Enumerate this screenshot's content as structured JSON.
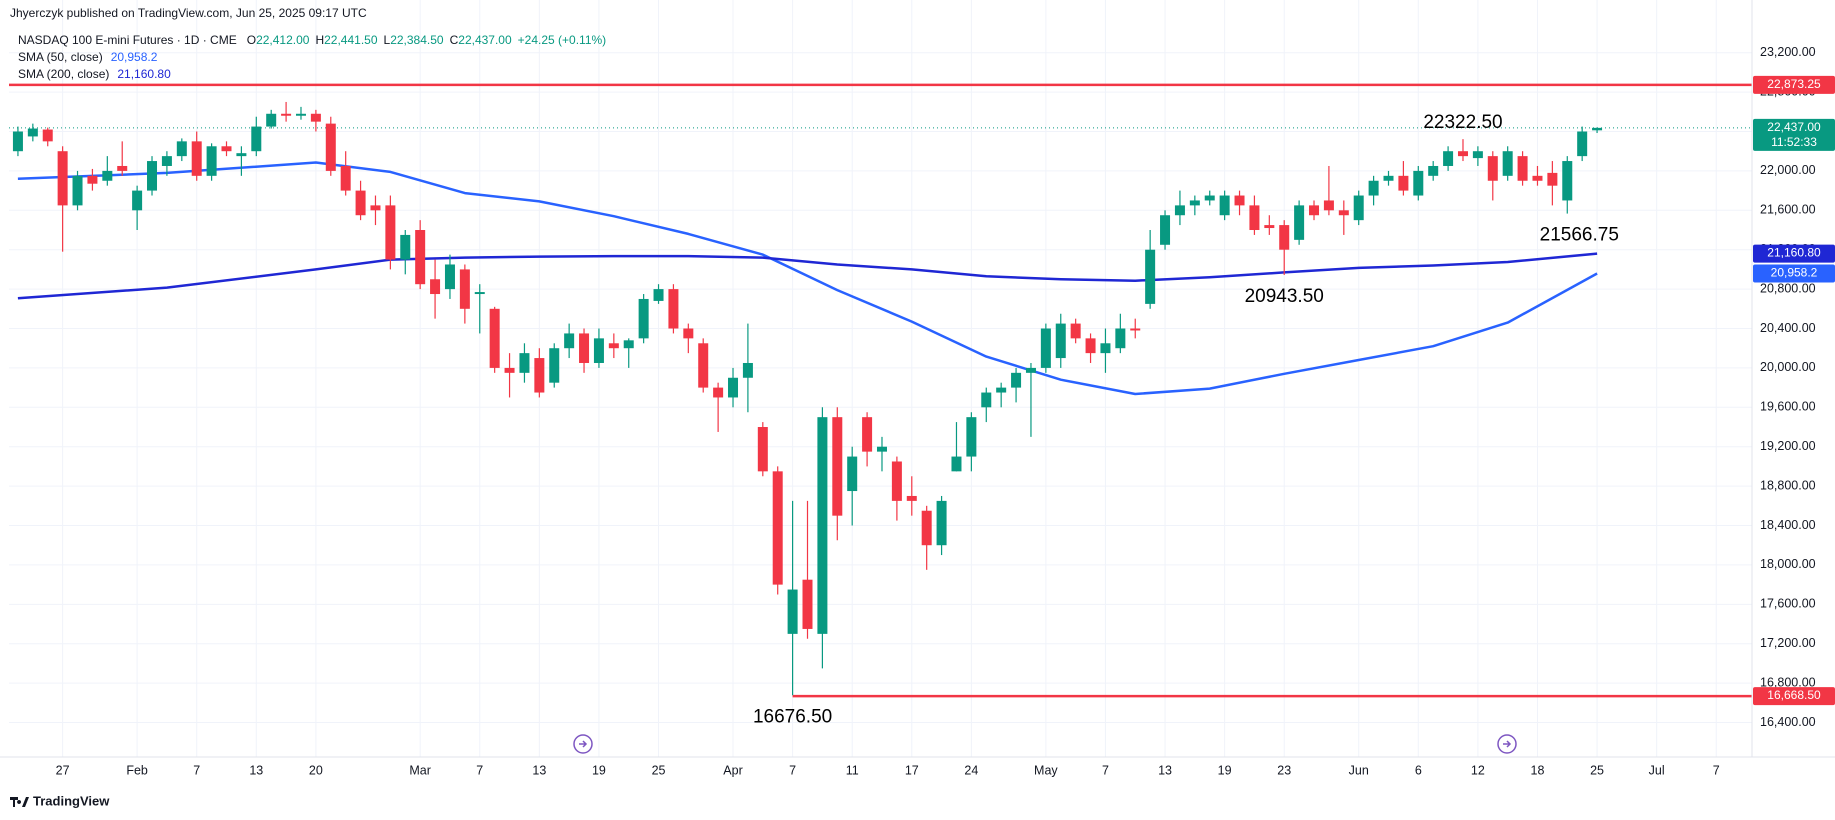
{
  "header": {
    "publisher": "Jhyerczyk published on TradingView.com, Jun 25, 2025 09:17 UTC"
  },
  "footer": {
    "brand": "TradingView"
  },
  "chart_data": {
    "type": "candlestick",
    "legend": {
      "symbol": "NASDAQ 100 E-mini Futures · 1D · CME",
      "ohlc": [
        {
          "key": "O",
          "value": "22,412.00"
        },
        {
          "key": "H",
          "value": "22,441.50"
        },
        {
          "key": "L",
          "value": "22,384.50"
        },
        {
          "key": "C",
          "value": "22,437.00"
        }
      ],
      "change": "+24.25 (+0.11%)"
    },
    "up_color": "#089981",
    "down_color": "#f23645",
    "x": [
      0,
      1,
      2,
      3,
      4,
      5,
      6,
      7,
      8,
      9,
      10,
      11,
      12,
      13,
      14,
      15,
      16,
      17,
      18,
      19,
      20,
      21,
      22,
      23,
      24,
      25,
      26,
      27,
      28,
      29,
      30,
      31,
      32,
      33,
      34,
      35,
      36,
      37,
      38,
      39,
      40,
      41,
      42,
      43,
      44,
      45,
      46,
      47,
      48,
      49,
      50,
      51,
      52,
      53,
      54,
      55,
      56,
      57,
      58,
      59,
      60,
      61,
      62,
      63,
      64,
      65,
      66,
      67,
      68,
      69,
      70,
      71,
      72,
      73,
      74,
      75,
      76,
      77,
      78,
      79,
      80,
      81,
      82,
      83,
      84,
      85,
      86,
      87,
      88,
      89,
      90,
      91,
      92,
      93,
      94,
      95,
      96,
      97,
      98,
      99,
      100,
      101,
      102,
      103,
      104,
      105,
      106
    ],
    "open": [
      22200,
      22350,
      22420,
      22200,
      21650,
      21950,
      21900,
      22050,
      21600,
      21800,
      22050,
      22150,
      22300,
      21950,
      22250,
      22150,
      22200,
      22450,
      22580,
      22560,
      22580,
      22480,
      22050,
      21800,
      21650,
      21650,
      21100,
      21400,
      20900,
      20800,
      21000,
      20750,
      20600,
      20000,
      19950,
      20100,
      19850,
      20200,
      20350,
      20050,
      20250,
      20200,
      20300,
      20680,
      20800,
      20400,
      20250,
      19800,
      19700,
      19900,
      19400,
      18950,
      17300,
      17850,
      17300,
      19500,
      18750,
      19500,
      19150,
      19050,
      18700,
      18550,
      18200,
      18950,
      19100,
      19600,
      19750,
      19800,
      19950,
      20000,
      20100,
      20450,
      20300,
      20150,
      20200,
      20400,
      20650,
      21250,
      21550,
      21650,
      21700,
      21550,
      21750,
      21650,
      21450,
      21450,
      21300,
      21650,
      21700,
      21600,
      21500,
      21750,
      21900,
      21950,
      21750,
      21950,
      22050,
      22200,
      22130,
      22150,
      21950,
      22150,
      21950,
      21980,
      21700,
      22150,
      22412
    ],
    "high": [
      22450,
      22480,
      22440,
      22250,
      22000,
      22020,
      22150,
      22300,
      21850,
      22150,
      22200,
      22330,
      22400,
      22280,
      22300,
      22250,
      22550,
      22620,
      22700,
      22650,
      22620,
      22550,
      22200,
      21900,
      21750,
      21750,
      21400,
      21500,
      21100,
      21150,
      21050,
      20850,
      20620,
      20150,
      20250,
      20200,
      20250,
      20450,
      20400,
      20400,
      20350,
      20300,
      20750,
      20850,
      20850,
      20450,
      20300,
      19850,
      20000,
      20450,
      19450,
      19000,
      18650,
      18650,
      19600,
      19600,
      19200,
      19550,
      19300,
      19100,
      18900,
      18600,
      18700,
      19450,
      19550,
      19800,
      19850,
      20000,
      20050,
      20450,
      20550,
      20500,
      20350,
      20400,
      20550,
      20500,
      21400,
      21600,
      21800,
      21750,
      21800,
      21800,
      21800,
      21750,
      21550,
      21500,
      21700,
      21700,
      22050,
      21700,
      21800,
      21950,
      22000,
      22100,
      22050,
      22100,
      22250,
      22322.5,
      22250,
      22200,
      22250,
      22200,
      22050,
      22100,
      22150,
      22450,
      22441.5
    ],
    "low": [
      22150,
      22300,
      22250,
      21180,
      21600,
      21800,
      21850,
      21950,
      21400,
      21750,
      21950,
      22100,
      21900,
      21900,
      22150,
      21950,
      22150,
      22430,
      22500,
      22520,
      22400,
      21950,
      21750,
      21500,
      21450,
      21000,
      20950,
      20800,
      20500,
      20700,
      20450,
      20350,
      19950,
      19700,
      19850,
      19700,
      19800,
      20100,
      19950,
      20000,
      20100,
      20000,
      20250,
      20650,
      20350,
      20150,
      19750,
      19350,
      19600,
      19550,
      18900,
      17700,
      16676.5,
      17250,
      16950,
      18250,
      18400,
      19000,
      18950,
      18450,
      18500,
      17950,
      18100,
      18950,
      18950,
      19450,
      19600,
      19650,
      19300,
      19950,
      20000,
      20250,
      20050,
      19950,
      20150,
      20300,
      20600,
      21200,
      21450,
      21550,
      21650,
      21500,
      21550,
      21350,
      21350,
      20943.5,
      21250,
      21500,
      21550,
      21350,
      21450,
      21650,
      21850,
      21750,
      21700,
      21900,
      22000,
      22100,
      22050,
      21700,
      21900,
      21850,
      21850,
      21650,
      21566.75,
      22100,
      22384.5
    ],
    "close": [
      22400,
      22430,
      22300,
      21650,
      21950,
      21870,
      22000,
      22000,
      21800,
      22100,
      22150,
      22300,
      21950,
      22250,
      22200,
      22180,
      22450,
      22580,
      22560,
      22580,
      22500,
      22000,
      21800,
      21550,
      21600,
      21100,
      21350,
      20850,
      20750,
      21050,
      20600,
      20770,
      20000,
      19950,
      20150,
      19750,
      20200,
      20350,
      20050,
      20300,
      20200,
      20280,
      20700,
      20800,
      20400,
      20300,
      19800,
      19700,
      19900,
      20050,
      18950,
      17800,
      17750,
      17350,
      19500,
      18500,
      19100,
      19150,
      19200,
      18650,
      18650,
      18200,
      18650,
      19100,
      19500,
      19750,
      19800,
      19950,
      20000,
      20400,
      20450,
      20300,
      20150,
      20250,
      20400,
      20380,
      21200,
      21550,
      21650,
      21700,
      21750,
      21750,
      21650,
      21400,
      21420,
      21200,
      21650,
      21550,
      21600,
      21550,
      21750,
      21900,
      21950,
      21800,
      22000,
      22050,
      22200,
      22150,
      22200,
      21900,
      22200,
      21900,
      21900,
      21850,
      22100,
      22400,
      22437
    ],
    "series": [
      {
        "name": "SMA (50, close)",
        "color": "#2962ff",
        "tag_label": "20,958.2",
        "x": [
          0,
          10,
          20,
          25,
          30,
          35,
          40,
          45,
          50,
          55,
          60,
          65,
          70,
          75,
          80,
          85,
          90,
          95,
          100,
          106
        ],
        "values": [
          21920,
          21980,
          22085,
          21990,
          21775,
          21690,
          21540,
          21360,
          21150,
          20790,
          20470,
          20115,
          19880,
          19735,
          19790,
          19940,
          20080,
          20220,
          20460,
          20958.2
        ]
      },
      {
        "name": "SMA (200, close)",
        "color": "#1f27d4",
        "tag_label": "21,160.80",
        "x": [
          0,
          10,
          20,
          25,
          30,
          35,
          40,
          45,
          50,
          55,
          60,
          65,
          70,
          75,
          80,
          85,
          90,
          95,
          100,
          106
        ],
        "values": [
          20707,
          20815,
          21000,
          21100,
          21120,
          21130,
          21135,
          21135,
          21120,
          21050,
          21000,
          20930,
          20900,
          20885,
          20920,
          20970,
          21015,
          21040,
          21075,
          21160.8
        ]
      }
    ],
    "hlines": [
      {
        "value": 22873.25,
        "label": "22,873.25",
        "color": "#f23645"
      },
      {
        "value": 16668.5,
        "label": "16,668.50",
        "color": "#f23645",
        "from_x": 52
      }
    ],
    "last_price": {
      "value": 22437,
      "label": "22,437.00",
      "countdown": "11:52:33",
      "color": "#089981"
    },
    "annotations": [
      {
        "label": "22322.50",
        "x": 97,
        "value": 22322.5,
        "position": "above"
      },
      {
        "label": "21566.75",
        "x": 104,
        "value": 21566.75,
        "position": "below"
      },
      {
        "label": "20943.50",
        "x": 85,
        "value": 20943.5,
        "position": "below"
      },
      {
        "label": "16676.50",
        "x": 52,
        "value": 16676.5,
        "position": "below"
      }
    ],
    "xlim": [
      -0.6,
      116.4
    ],
    "ylim": [
      16050,
      23735
    ],
    "xticks": [
      {
        "value": 3,
        "label": "27"
      },
      {
        "value": 8,
        "label": "Feb"
      },
      {
        "value": 12,
        "label": "7"
      },
      {
        "value": 16,
        "label": "13"
      },
      {
        "value": 20,
        "label": "20"
      },
      {
        "value": 27,
        "label": "Mar"
      },
      {
        "value": 31,
        "label": "7"
      },
      {
        "value": 35,
        "label": "13"
      },
      {
        "value": 39,
        "label": "19"
      },
      {
        "value": 43,
        "label": "25"
      },
      {
        "value": 48,
        "label": "Apr"
      },
      {
        "value": 52,
        "label": "7"
      },
      {
        "value": 56,
        "label": "11"
      },
      {
        "value": 60,
        "label": "17"
      },
      {
        "value": 64,
        "label": "24"
      },
      {
        "value": 69,
        "label": "May"
      },
      {
        "value": 73,
        "label": "7"
      },
      {
        "value": 77,
        "label": "13"
      },
      {
        "value": 81,
        "label": "19"
      },
      {
        "value": 85,
        "label": "23"
      },
      {
        "value": 90,
        "label": "Jun"
      },
      {
        "value": 94,
        "label": "6"
      },
      {
        "value": 98,
        "label": "12"
      },
      {
        "value": 102,
        "label": "18"
      },
      {
        "value": 106,
        "label": "25"
      },
      {
        "value": 110,
        "label": "Jul"
      },
      {
        "value": 114,
        "label": "7"
      }
    ],
    "yticks": [
      {
        "value": 16400,
        "label": "16,400.00"
      },
      {
        "value": 16800,
        "label": "16,800.00"
      },
      {
        "value": 17200,
        "label": "17,200.00"
      },
      {
        "value": 17600,
        "label": "17,600.00"
      },
      {
        "value": 18000,
        "label": "18,000.00"
      },
      {
        "value": 18400,
        "label": "18,400.00"
      },
      {
        "value": 18800,
        "label": "18,800.00"
      },
      {
        "value": 19200,
        "label": "19,200.00"
      },
      {
        "value": 19600,
        "label": "19,600.00"
      },
      {
        "value": 20000,
        "label": "20,000.00"
      },
      {
        "value": 20400,
        "label": "20,400.00"
      },
      {
        "value": 20800,
        "label": "20,800.00"
      },
      {
        "value": 21200,
        "label": "21,200.00"
      },
      {
        "value": 21600,
        "label": "21,600.00"
      },
      {
        "value": 22000,
        "label": "22,000.00"
      },
      {
        "value": 22400,
        "label": "22,400.00"
      },
      {
        "value": 22800,
        "label": "22,800.00"
      },
      {
        "value": 23200,
        "label": "23,200.00"
      }
    ],
    "grid": true
  }
}
